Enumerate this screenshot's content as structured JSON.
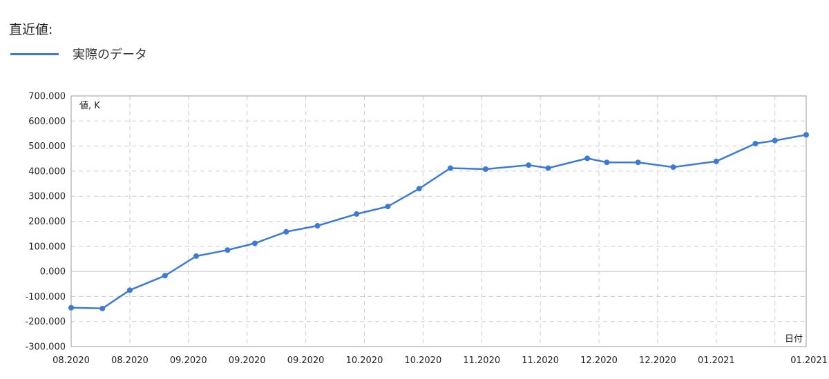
{
  "header": {
    "title": "直近値:"
  },
  "legend": {
    "label": "実際のデータ"
  },
  "colors": {
    "series": "#3d7ad4",
    "grid": "#cccccc",
    "axis": "#999999"
  },
  "chart_data": {
    "type": "line",
    "title": "",
    "ylabel": "値, K",
    "xlabel": "日付",
    "ylim": [
      -300,
      700
    ],
    "y_ticks": [
      700,
      600,
      500,
      400,
      300,
      200,
      100,
      0,
      -100,
      -200,
      -300
    ],
    "y_tick_labels": [
      "700.000",
      "600.000",
      "500.000",
      "400.000",
      "300.000",
      "200.000",
      "100.000",
      "0.000",
      "-100.000",
      "-200.000",
      "-300.000"
    ],
    "x_tick_labels": [
      "08.2020",
      "08.2020",
      "09.2020",
      "09.2020",
      "09.2020",
      "10.2020",
      "10.2020",
      "11.2020",
      "11.2020",
      "12.2020",
      "12.2020",
      "01.2021",
      "01.2021"
    ],
    "x_tick_dates": [
      "2020-08-01",
      "2020-08-16",
      "2020-08-31",
      "2020-09-15",
      "2020-09-30",
      "2020-10-15",
      "2020-10-30",
      "2020-11-14",
      "2020-11-29",
      "2020-12-14",
      "2020-12-29",
      "2021-01-13",
      "2021-01-28"
    ],
    "grid": true,
    "series": [
      {
        "name": "実際のデータ",
        "points": [
          {
            "x": "2020-08-01",
            "y": -145
          },
          {
            "x": "2020-08-09",
            "y": -148
          },
          {
            "x": "2020-08-16",
            "y": -75
          },
          {
            "x": "2020-08-25",
            "y": -17
          },
          {
            "x": "2020-09-02",
            "y": 61
          },
          {
            "x": "2020-09-10",
            "y": 85
          },
          {
            "x": "2020-09-17",
            "y": 112
          },
          {
            "x": "2020-09-25",
            "y": 158
          },
          {
            "x": "2020-10-03",
            "y": 182
          },
          {
            "x": "2020-10-13",
            "y": 229
          },
          {
            "x": "2020-10-21",
            "y": 259
          },
          {
            "x": "2020-10-29",
            "y": 330
          },
          {
            "x": "2020-11-06",
            "y": 412
          },
          {
            "x": "2020-11-15",
            "y": 408
          },
          {
            "x": "2020-11-26",
            "y": 424
          },
          {
            "x": "2020-12-01",
            "y": 412
          },
          {
            "x": "2020-12-11",
            "y": 451
          },
          {
            "x": "2020-12-16",
            "y": 435
          },
          {
            "x": "2020-12-24",
            "y": 435
          },
          {
            "x": "2021-01-02",
            "y": 416
          },
          {
            "x": "2021-01-13",
            "y": 439
          },
          {
            "x": "2021-01-23",
            "y": 510
          },
          {
            "x": "2021-01-28",
            "y": 522
          },
          {
            "x": "2021-02-05",
            "y": 545
          }
        ]
      }
    ]
  }
}
